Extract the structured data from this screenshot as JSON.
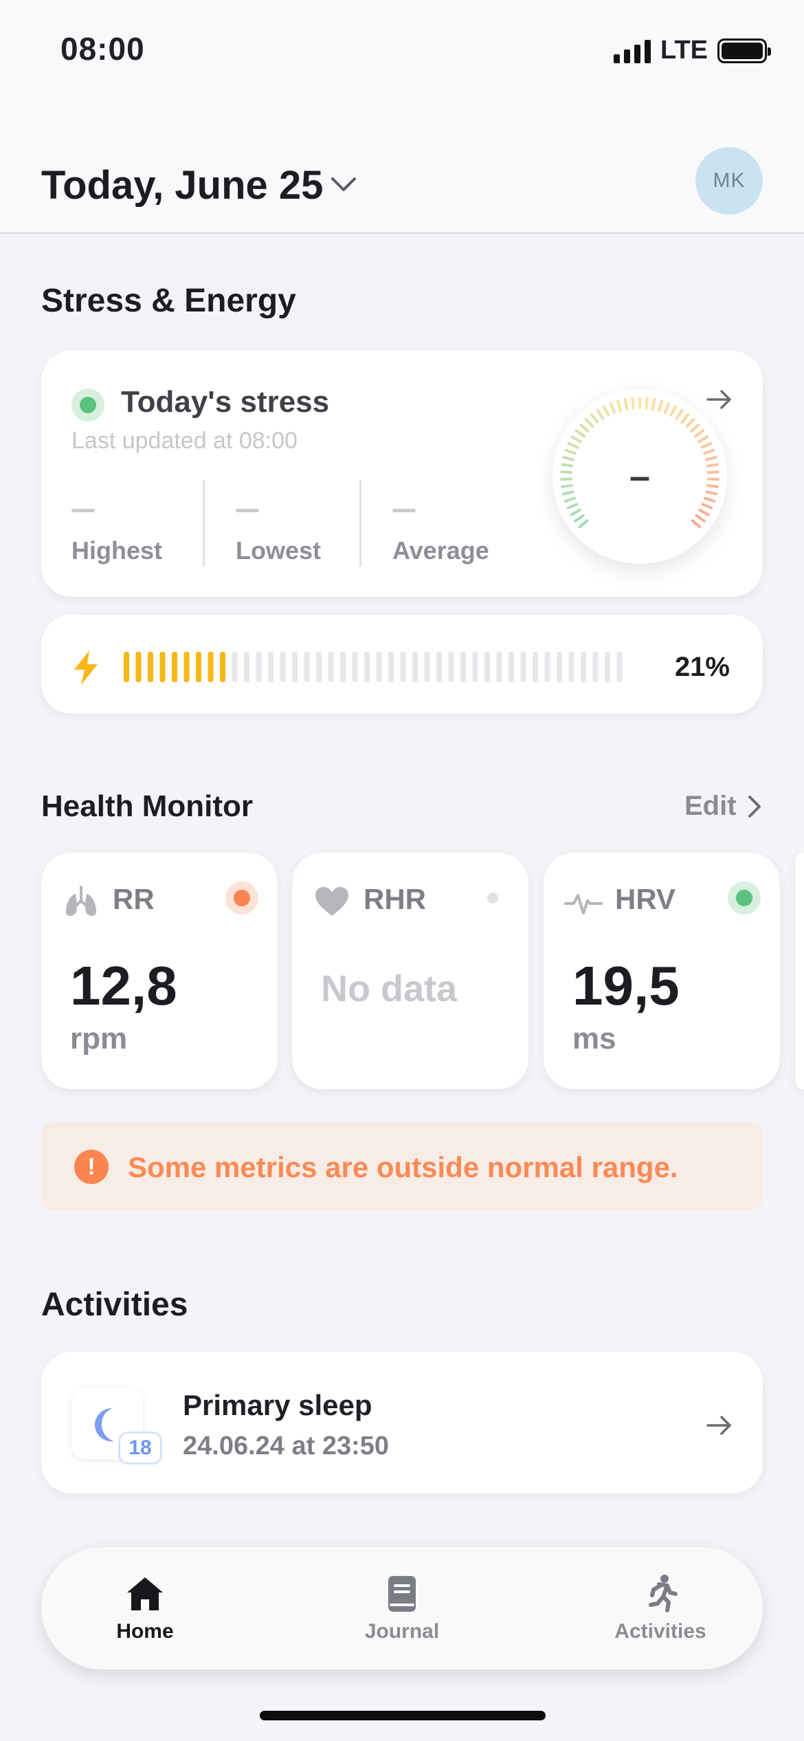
{
  "status_bar": {
    "time": "08:00",
    "network": "LTE"
  },
  "header": {
    "date_title": "Today, June 25",
    "avatar_initials": "MK"
  },
  "stress_energy": {
    "section_title": "Stress & Energy",
    "stress": {
      "title": "Today's stress",
      "updated": "Last updated at 08:00",
      "gauge_value": "–",
      "stats": [
        {
          "label": "Highest"
        },
        {
          "label": "Lowest"
        },
        {
          "label": "Average"
        }
      ]
    },
    "energy": {
      "percent_label": "21%",
      "level": 0.21,
      "color": "#f7b718"
    }
  },
  "health_monitor": {
    "section_title": "Health Monitor",
    "edit_label": "Edit",
    "metrics": [
      {
        "name": "RR",
        "value": "12,8",
        "unit": "rpm",
        "icon": "lungs-icon",
        "status_color": "#fb8450",
        "status_bg": "#fde2d6"
      },
      {
        "name": "RHR",
        "nodata": "No data",
        "icon": "heart-icon",
        "status_color": "#e2e3e7",
        "status_bg": "transparent"
      },
      {
        "name": "HRV",
        "value": "19,5",
        "unit": "ms",
        "icon": "heartbeat-icon",
        "status_color": "#5cc07e",
        "status_bg": "#d7f0de"
      }
    ],
    "alert": "Some metrics are outside normal range."
  },
  "activities": {
    "section_title": "Activities",
    "items": [
      {
        "title": "Primary sleep",
        "subtitle": "24.06.24 at 23:50",
        "badge": "18",
        "icon": "moon-icon"
      }
    ]
  },
  "tabbar": {
    "tabs": [
      {
        "label": "Home",
        "icon": "home-icon",
        "active": true
      },
      {
        "label": "Journal",
        "icon": "journal-icon",
        "active": false
      },
      {
        "label": "Activities",
        "icon": "running-icon",
        "active": false
      }
    ]
  }
}
